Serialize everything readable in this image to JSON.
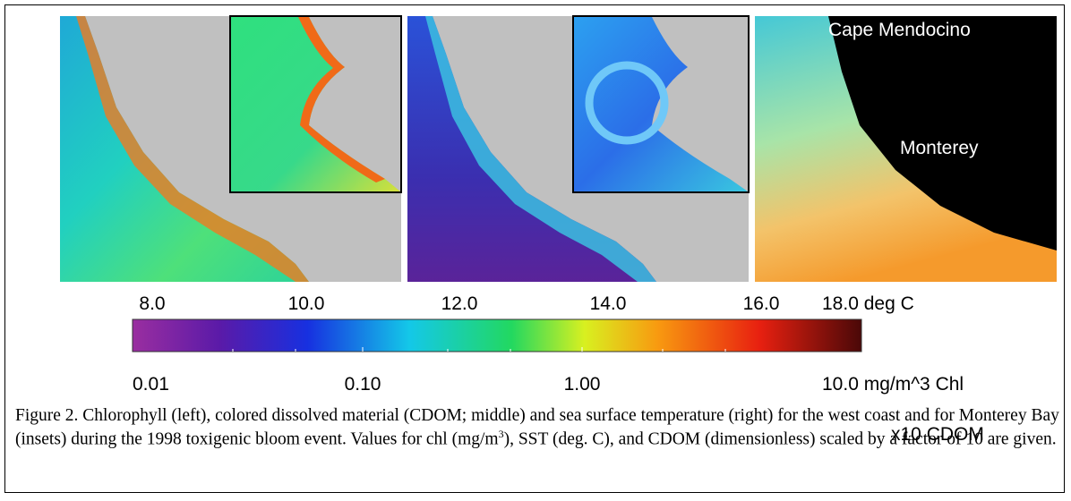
{
  "panels": {
    "cdom_labels": [],
    "sst_labels": [
      "Cape Mendocino",
      "Monterey"
    ]
  },
  "colorbar": {
    "top_labels": [
      "8.0",
      "10.0",
      "12.0",
      "14.0",
      "16.0",
      "18.0 deg C"
    ],
    "bottom_labels": [
      "0.01",
      "0.10",
      "1.00",
      "10.0 mg/m^3 Chl",
      "x10 CDOM"
    ]
  },
  "caption": {
    "runs": [
      "Figure 2. Chlorophyll (left), colored dissolved material (CDOM; middle) and sea surface temperature (right) for the west coast and for Monterey Bay (insets) during the 1998 toxigenic bloom event. Values for chl (mg/m",
      "3",
      "), SST (deg. C), and CDOM (dimensionless) scaled by a factor of 10 are given."
    ]
  }
}
